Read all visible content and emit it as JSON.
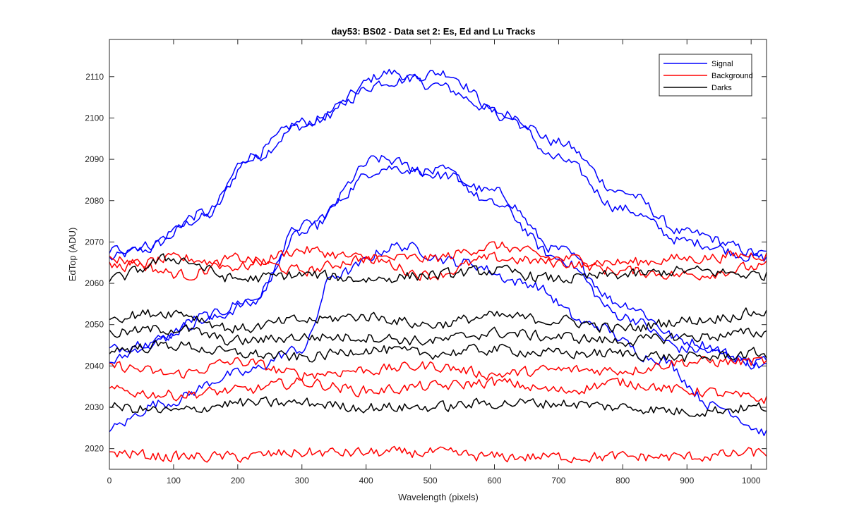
{
  "chart_data": {
    "type": "line",
    "title": "day53: BS02 - Data set 2: Es, Ed and Lu Tracks",
    "xlabel": "Wavelength (pixels)",
    "ylabel": "EdTop (ADU)",
    "xlim": [
      0,
      1024
    ],
    "ylim": [
      2015,
      2119
    ],
    "xticks": [
      0,
      100,
      200,
      300,
      400,
      500,
      600,
      700,
      800,
      900,
      1000
    ],
    "yticks": [
      2020,
      2030,
      2040,
      2050,
      2060,
      2070,
      2080,
      2090,
      2100,
      2110
    ],
    "grid": false,
    "legend_position": "top-right",
    "legend": [
      {
        "label": "Signal",
        "color": "#0000ff"
      },
      {
        "label": "Background",
        "color": "#ff0000"
      },
      {
        "label": "Darks",
        "color": "#000000"
      }
    ],
    "x_step": 4,
    "noise_amplitude": 1.2,
    "series": [
      {
        "group": "Signal",
        "color": "#0000ff",
        "shape": {
          "x": [
            0,
            50,
            150,
            220,
            300,
            440,
            500,
            620,
            700,
            800,
            900,
            1024
          ],
          "y": [
            2066,
            2068,
            2076,
            2090,
            2098,
            2111,
            2108,
            2101,
            2094,
            2082,
            2072,
            2067
          ]
        }
      },
      {
        "group": "Signal",
        "color": "#0000ff",
        "shape": {
          "x": [
            0,
            50,
            150,
            220,
            300,
            440,
            520,
            620,
            700,
            800,
            900,
            1024
          ],
          "y": [
            2068,
            2069,
            2077,
            2091,
            2099,
            2109,
            2111,
            2100,
            2090,
            2078,
            2070,
            2066
          ]
        }
      },
      {
        "group": "Signal",
        "color": "#0000ff",
        "shape": {
          "x": [
            0,
            60,
            150,
            220,
            300,
            420,
            520,
            600,
            700,
            800,
            900,
            1024
          ],
          "y": [
            2041,
            2045,
            2052,
            2056,
            2072,
            2090,
            2086,
            2082,
            2068,
            2055,
            2046,
            2040
          ]
        }
      },
      {
        "group": "Signal",
        "color": "#0000ff",
        "shape": {
          "x": [
            0,
            60,
            150,
            220,
            300,
            430,
            520,
            600,
            700,
            800,
            900,
            1024
          ],
          "y": [
            2044,
            2046,
            2051,
            2055,
            2074,
            2088,
            2087,
            2079,
            2066,
            2052,
            2044,
            2041
          ]
        }
      },
      {
        "group": "Signal",
        "color": "#0000ff",
        "shape": {
          "x": [
            0,
            80,
            200,
            300,
            350,
            450,
            550,
            650,
            750,
            850,
            950,
            1024
          ],
          "y": [
            2025,
            2031,
            2038,
            2044,
            2062,
            2069,
            2065,
            2060,
            2050,
            2042,
            2030,
            2024
          ]
        }
      },
      {
        "group": "Background",
        "color": "#ff0000",
        "shape": {
          "x": [
            0,
            120,
            200,
            300,
            400,
            500,
            600,
            700,
            800,
            900,
            1024
          ],
          "y": [
            2064,
            2066,
            2064,
            2068,
            2066,
            2066,
            2069,
            2066,
            2065,
            2066,
            2067
          ]
        }
      },
      {
        "group": "Background",
        "color": "#ff0000",
        "shape": {
          "x": [
            0,
            120,
            200,
            300,
            400,
            500,
            600,
            700,
            800,
            900,
            1024
          ],
          "y": [
            2066,
            2062,
            2066,
            2063,
            2066,
            2062,
            2066,
            2065,
            2063,
            2062,
            2064
          ]
        }
      },
      {
        "group": "Background",
        "color": "#ff0000",
        "shape": {
          "x": [
            0,
            100,
            200,
            300,
            400,
            500,
            600,
            700,
            800,
            900,
            1024
          ],
          "y": [
            2040,
            2038,
            2041,
            2038,
            2039,
            2040,
            2038,
            2039,
            2039,
            2041,
            2041
          ]
        }
      },
      {
        "group": "Background",
        "color": "#ff0000",
        "shape": {
          "x": [
            0,
            100,
            200,
            300,
            400,
            500,
            600,
            700,
            800,
            900,
            1024
          ],
          "y": [
            2034,
            2033,
            2034,
            2036,
            2034,
            2035,
            2036,
            2034,
            2036,
            2034,
            2032
          ]
        }
      },
      {
        "group": "Background",
        "color": "#ff0000",
        "shape": {
          "x": [
            0,
            100,
            200,
            300,
            400,
            500,
            600,
            700,
            800,
            900,
            1024
          ],
          "y": [
            2019,
            2018,
            2018,
            2019,
            2019,
            2019,
            2018,
            2018,
            2018,
            2018,
            2019
          ]
        }
      },
      {
        "group": "Darks",
        "color": "#000000",
        "shape": {
          "x": [
            0,
            100,
            200,
            300,
            400,
            500,
            600,
            700,
            800,
            900,
            1024
          ],
          "y": [
            2061,
            2066,
            2061,
            2062,
            2061,
            2062,
            2063,
            2061,
            2062,
            2063,
            2062
          ]
        }
      },
      {
        "group": "Darks",
        "color": "#000000",
        "shape": {
          "x": [
            0,
            100,
            200,
            300,
            400,
            500,
            600,
            700,
            800,
            900,
            1024
          ],
          "y": [
            2052,
            2053,
            2049,
            2051,
            2052,
            2050,
            2052,
            2051,
            2049,
            2051,
            2053
          ]
        }
      },
      {
        "group": "Darks",
        "color": "#000000",
        "shape": {
          "x": [
            0,
            100,
            200,
            300,
            400,
            500,
            600,
            700,
            800,
            900,
            1024
          ],
          "y": [
            2048,
            2049,
            2046,
            2047,
            2047,
            2046,
            2048,
            2047,
            2046,
            2047,
            2048
          ]
        }
      },
      {
        "group": "Darks",
        "color": "#000000",
        "shape": {
          "x": [
            0,
            100,
            200,
            300,
            400,
            500,
            600,
            700,
            800,
            900,
            1024
          ],
          "y": [
            2044,
            2045,
            2043,
            2042,
            2044,
            2043,
            2044,
            2043,
            2043,
            2042,
            2043
          ]
        }
      },
      {
        "group": "Darks",
        "color": "#000000",
        "shape": {
          "x": [
            0,
            100,
            200,
            300,
            400,
            500,
            600,
            700,
            800,
            900,
            1024
          ],
          "y": [
            2030,
            2029,
            2031,
            2031,
            2030,
            2030,
            2031,
            2031,
            2030,
            2029,
            2030
          ]
        }
      }
    ]
  }
}
